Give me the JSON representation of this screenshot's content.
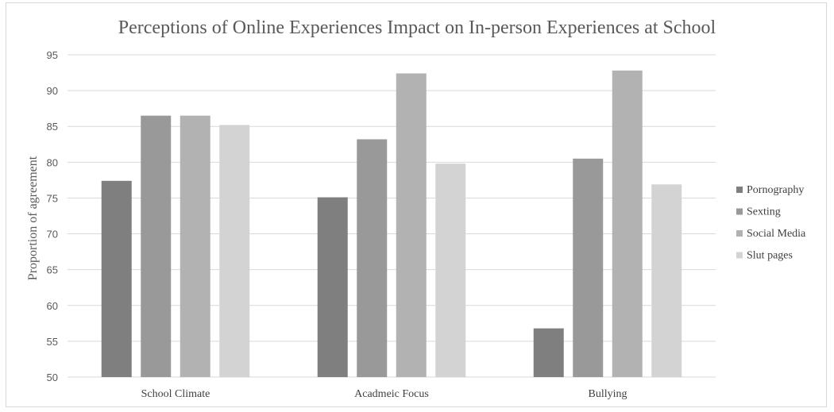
{
  "chart_data": {
    "type": "bar",
    "title": "Perceptions of Online Experiences Impact on In-person Experiences at School",
    "ylabel": "Proportion of agreement",
    "xlabel": "",
    "categories": [
      "School Climate",
      "Acadmeic Focus",
      "Bullying"
    ],
    "ylim": [
      50,
      95
    ],
    "yticks": [
      50,
      55,
      60,
      65,
      70,
      75,
      80,
      85,
      90,
      95
    ],
    "grid": true,
    "legend_position": "right",
    "series": [
      {
        "name": "Pornography",
        "color": "#7f7f7f",
        "values": [
          77.4,
          75.1,
          56.8
        ]
      },
      {
        "name": "Sexting",
        "color": "#999999",
        "values": [
          86.5,
          83.2,
          80.5
        ]
      },
      {
        "name": "Social Media",
        "color": "#b2b2b2",
        "values": [
          86.5,
          92.4,
          92.8
        ]
      },
      {
        "name": "Slut pages",
        "color": "#d3d3d3",
        "values": [
          85.2,
          79.8,
          76.9
        ]
      }
    ]
  }
}
